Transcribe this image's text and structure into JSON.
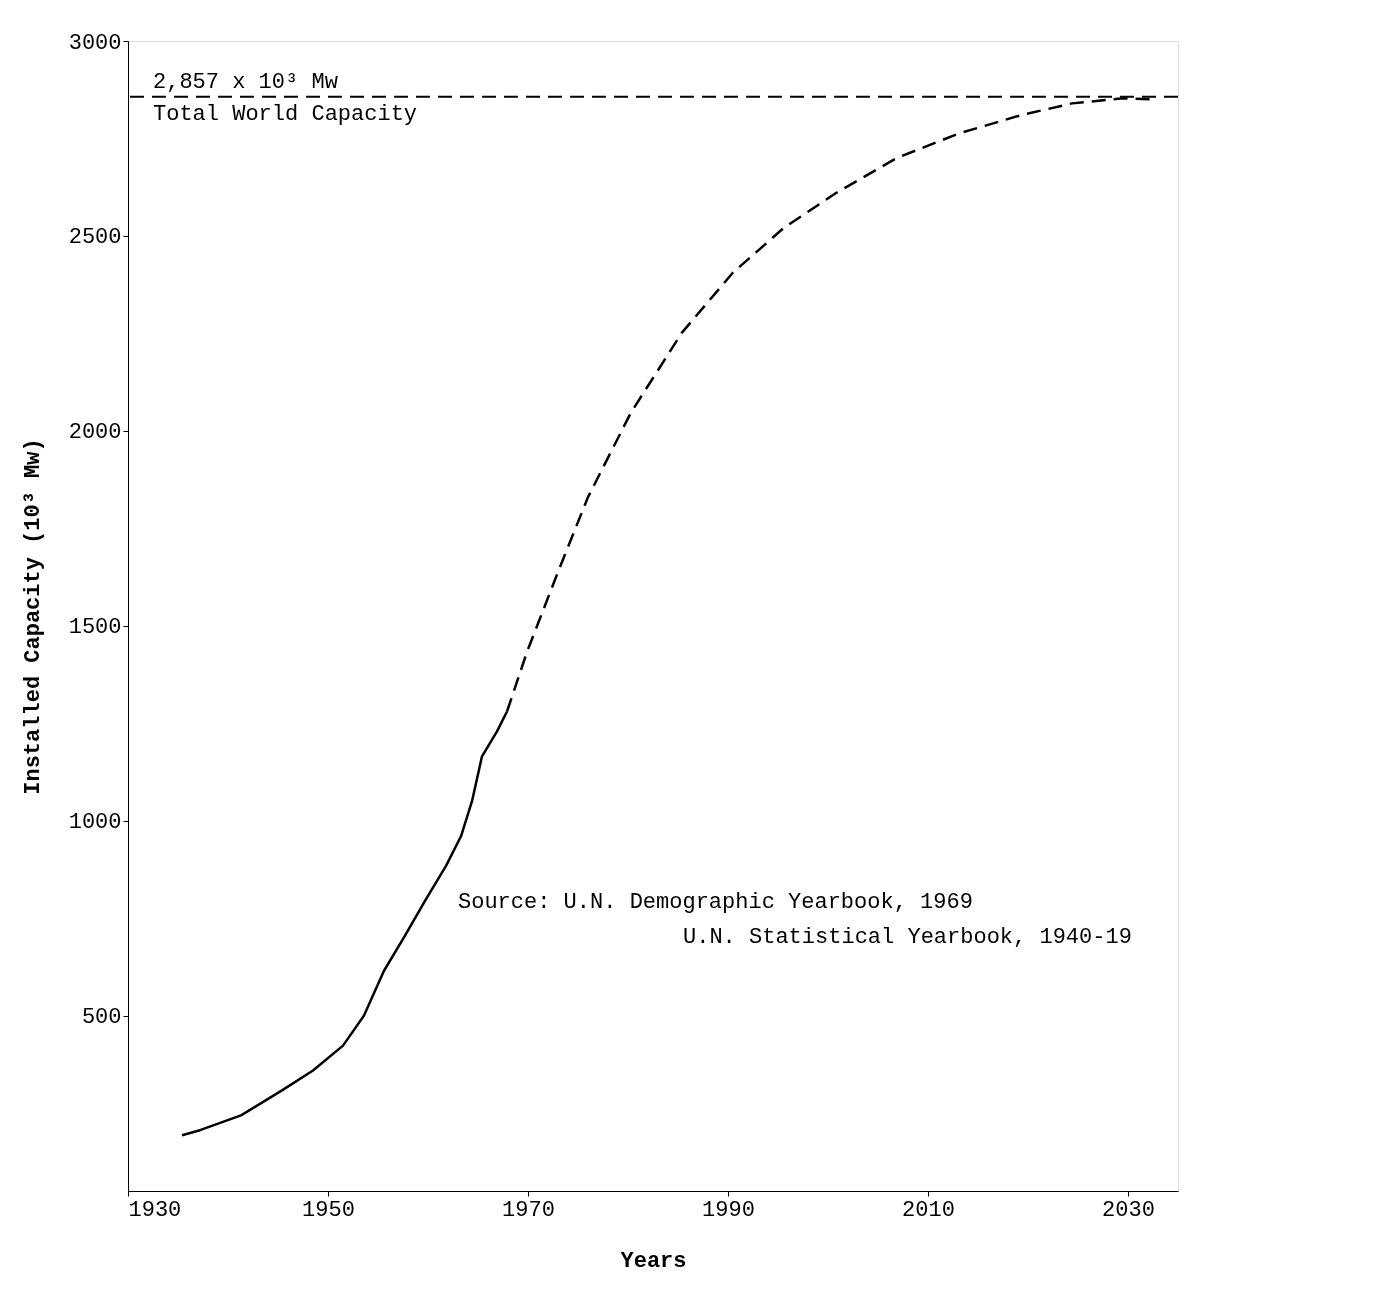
{
  "chart_data": {
    "type": "line",
    "xlabel": "Years",
    "ylabel": "Installed Capacity (10³ Mw)",
    "xlim": [
      1930,
      2035
    ],
    "xticks": [
      1930,
      1950,
      1970,
      1990,
      2010,
      2030
    ],
    "ylim": [
      50,
      3000
    ],
    "yticks": [
      500,
      1000,
      1500,
      2000,
      2500,
      3000
    ],
    "grid": false,
    "marker": "none",
    "series": [
      {
        "color": "#000000",
        "line_style": "solid",
        "x": [
          1935.4,
          1937.2,
          1941.3,
          1945.4,
          1948.5,
          1951.5,
          1953.6,
          1955.6,
          1957.7,
          1959.7,
          1961.8,
          1963.3,
          1964.4,
          1965.4,
          1966.9,
          1967.9
        ],
        "values": [
          193,
          206,
          244,
          308,
          359,
          423,
          500,
          615,
          705,
          794,
          884,
          960,
          1050,
          1165,
          1229,
          1280
        ]
      },
      {
        "color": "#000000",
        "line_style": "dashed",
        "x": [
          1967.9,
          1969.9,
          1973,
          1976,
          1980.3,
          1985.4,
          1990.5,
          1995.6,
          2000.8,
          2006.9,
          2013.1,
          2019.2,
          2024.4,
          2029.5,
          2032.6
        ],
        "values": [
          1280,
          1433,
          1638,
          1830,
          2047,
          2252,
          2406,
          2521,
          2610,
          2700,
          2763,
          2809,
          2840,
          2853,
          2850
        ]
      }
    ],
    "ref_lines": [
      {
        "axis": "y",
        "value": 2857,
        "label": "2,857 x 10³ Mw",
        "line_style": "dashed",
        "color": "#000000"
      }
    ],
    "annotations": [
      "Total World Capacity",
      "Source:  U.N. Demographic Yearbook, 1969",
      "U.N. Statistical Yearbook, 1940-19"
    ]
  }
}
